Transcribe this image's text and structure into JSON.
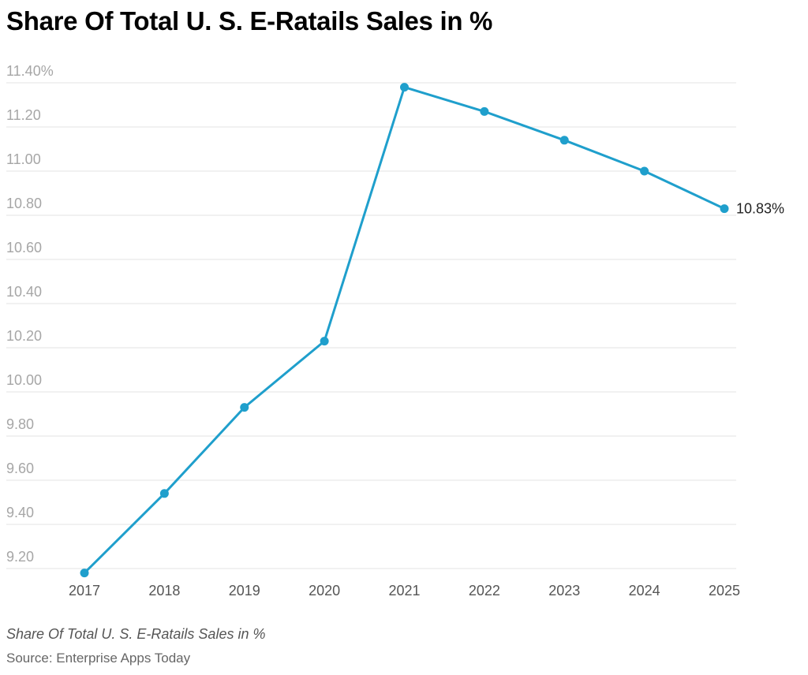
{
  "chart_data": {
    "type": "line",
    "title": "Share Of Total U. S. E-Ratails Sales in %",
    "subtitle": "Share Of Total U. S. E-Ratails Sales in %",
    "source": "Source: Enterprise Apps Today",
    "xlabel": "",
    "ylabel": "",
    "categories": [
      "2017",
      "2018",
      "2019",
      "2020",
      "2021",
      "2022",
      "2023",
      "2024",
      "2025"
    ],
    "series": [
      {
        "name": "Share Of Total U. S. E-Ratails Sales in %",
        "values": [
          9.18,
          9.54,
          9.93,
          10.23,
          11.38,
          11.27,
          11.14,
          11.0,
          10.83
        ]
      }
    ],
    "yticks": [
      9.2,
      9.4,
      9.6,
      9.8,
      10.0,
      10.2,
      10.4,
      10.6,
      10.8,
      11.0,
      11.2,
      11.4
    ],
    "ytick_labels": [
      "9.20",
      "9.40",
      "9.60",
      "9.80",
      "10.00",
      "10.20",
      "10.40",
      "10.60",
      "10.80",
      "11.00",
      "11.20",
      "11.40%"
    ],
    "ylim": [
      9.2,
      11.4
    ],
    "last_value_label": "10.83%",
    "grid": true,
    "colors": {
      "line": "#1f9fcc",
      "grid": "#e3e3e3",
      "tick_text_y": "#a6a6a6",
      "tick_text_x": "#555555",
      "label_text": "#222222"
    }
  }
}
